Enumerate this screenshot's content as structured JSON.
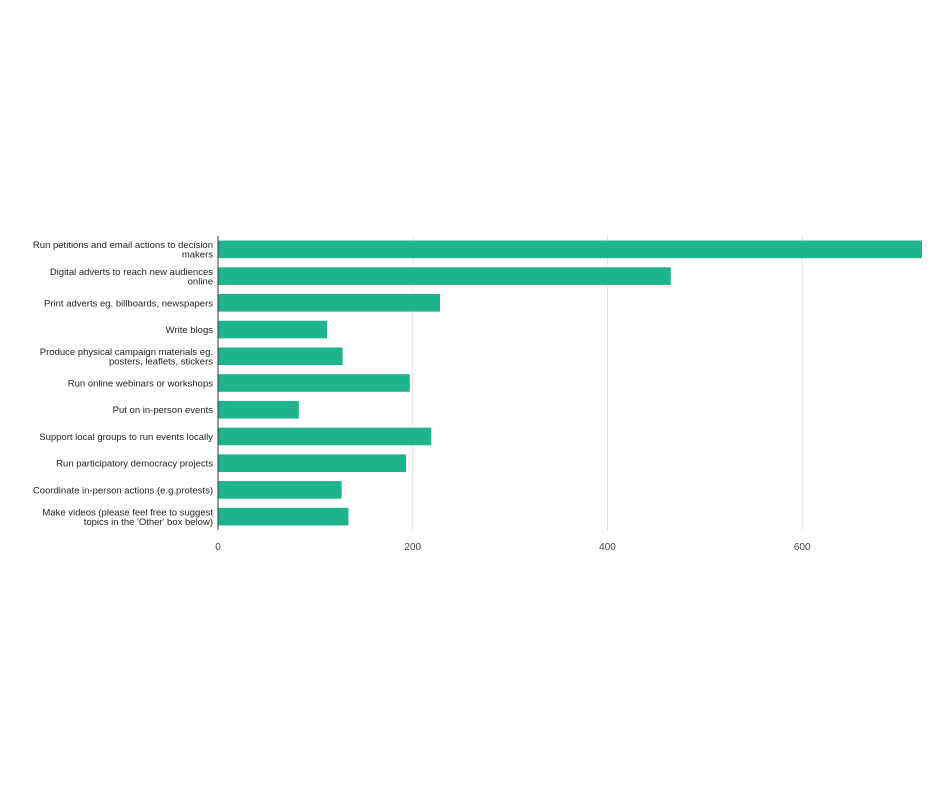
{
  "chart_data": {
    "type": "bar",
    "orientation": "horizontal",
    "categories": [
      "Run petitions and email actions to decision makers",
      "Digital adverts to reach new audiences online",
      "Print adverts eg. billboards, newspapers",
      "Write blogs",
      "Produce physical campaign materials eg. posters, leaflets, stickers",
      "Run online webinars or workshops",
      "Put on in-person events",
      "Support local groups to run events locally",
      "Run participatory democracy projects",
      "Coordinate in-person actions (e.g.protests)",
      "Make videos (please feel free to suggest topics in the 'Other' box below)"
    ],
    "category_lines": [
      [
        "Run petitions and email actions to decision",
        "makers"
      ],
      [
        "Digital adverts to reach new audiences",
        "online"
      ],
      [
        "Print adverts eg. billboards, newspapers"
      ],
      [
        "Write blogs"
      ],
      [
        "Produce physical campaign materials eg.",
        "posters, leaflets, stickers"
      ],
      [
        "Run online webinars or workshops"
      ],
      [
        "Put on in-person events"
      ],
      [
        "Support local groups to run events locally"
      ],
      [
        "Run participatory democracy projects"
      ],
      [
        "Coordinate in-person actions (e.g.protests)"
      ],
      [
        "Make videos (please feel free to suggest",
        "topics in the 'Other' box below)"
      ]
    ],
    "values": [
      723,
      465,
      228,
      112,
      128,
      197,
      83,
      219,
      193,
      127,
      134
    ],
    "xlim": [
      0,
      723
    ],
    "xticks": [
      0,
      200,
      400,
      600
    ],
    "grid": true,
    "legend": "none",
    "bar_color": "#1FB48C",
    "grid_color": "#E2E2E2",
    "axis_color": "#333333"
  }
}
